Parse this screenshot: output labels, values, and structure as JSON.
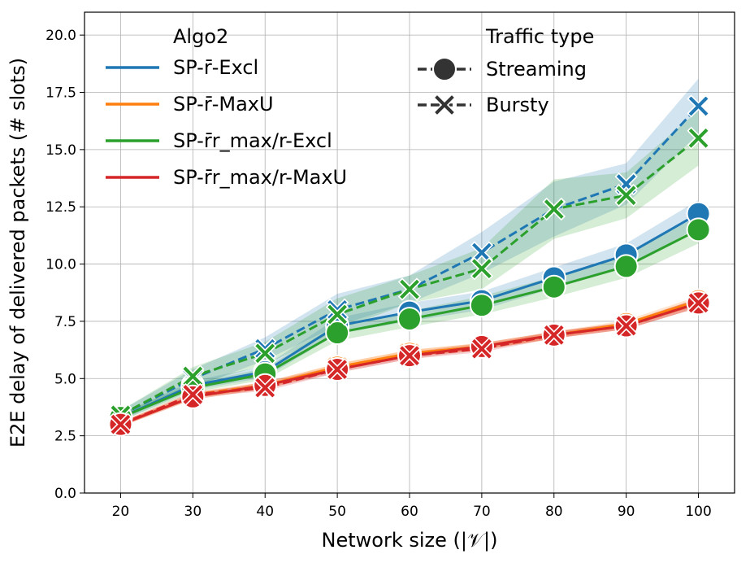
{
  "chart_data": {
    "type": "line",
    "xlabel": "Network size (|𝒱|)",
    "ylabel": "E2E delay of delivered packets (# slots)",
    "x": [
      20,
      30,
      40,
      50,
      60,
      70,
      80,
      90,
      100
    ],
    "xlim": [
      15,
      105
    ],
    "ylim": [
      0,
      21
    ],
    "yticks": [
      "0.0",
      "2.5",
      "5.0",
      "7.5",
      "10.0",
      "12.5",
      "15.0",
      "17.5",
      "20.0"
    ],
    "ytick_values": [
      0,
      2.5,
      5,
      7.5,
      10,
      12.5,
      15,
      17.5,
      20
    ],
    "grid": true,
    "legend_algo": {
      "title": "Algo2",
      "entries": [
        {
          "label": "SP-r̄-Excl",
          "color": "#1f77b4"
        },
        {
          "label": "SP-r̄-MaxU",
          "color": "#ff7f0e"
        },
        {
          "label": "SP-r̄r_max/r-Excl",
          "color": "#2ca02c"
        },
        {
          "label": "SP-r̄r_max/r-MaxU",
          "color": "#d62728"
        }
      ]
    },
    "legend_traffic": {
      "title": "Traffic type",
      "entries": [
        {
          "label": "Streaming",
          "marker": "circle",
          "style": "dashed"
        },
        {
          "label": "Bursty",
          "marker": "x",
          "style": "dashed"
        }
      ]
    },
    "series": [
      {
        "algo": "SP-r̄-Excl",
        "traffic": "Streaming",
        "color": "#1f77b4",
        "values": [
          3.3,
          4.7,
          5.3,
          7.3,
          7.9,
          8.4,
          9.4,
          10.4,
          12.2
        ],
        "ci": [
          0.15,
          0.2,
          0.25,
          0.35,
          0.4,
          0.4,
          0.45,
          0.5,
          0.6
        ]
      },
      {
        "algo": "SP-r̄-Excl",
        "traffic": "Bursty",
        "color": "#1f77b4",
        "values": [
          3.4,
          5.0,
          6.3,
          8.0,
          8.9,
          10.5,
          12.4,
          13.5,
          16.9
        ],
        "ci": [
          0.2,
          0.4,
          0.5,
          0.7,
          0.6,
          0.9,
          1.2,
          0.9,
          1.2
        ]
      },
      {
        "algo": "SP-r̄-MaxU",
        "traffic": "Streaming",
        "color": "#ff7f0e",
        "values": [
          3.0,
          4.2,
          4.7,
          5.5,
          6.1,
          6.4,
          6.9,
          7.4,
          8.4
        ],
        "ci": [
          0.1,
          0.12,
          0.15,
          0.15,
          0.15,
          0.15,
          0.15,
          0.15,
          0.2
        ]
      },
      {
        "algo": "SP-r̄-MaxU",
        "traffic": "Bursty",
        "color": "#ff7f0e",
        "values": [
          3.0,
          4.3,
          4.7,
          5.5,
          6.1,
          6.4,
          6.9,
          7.3,
          8.3
        ],
        "ci": [
          0.1,
          0.12,
          0.15,
          0.15,
          0.15,
          0.15,
          0.15,
          0.15,
          0.2
        ]
      },
      {
        "algo": "SP-r̄r_max/r-Excl",
        "traffic": "Streaming",
        "color": "#2ca02c",
        "values": [
          3.3,
          4.6,
          5.2,
          7.0,
          7.6,
          8.2,
          9.0,
          9.9,
          11.5
        ],
        "ci": [
          0.15,
          0.2,
          0.25,
          0.35,
          0.35,
          0.4,
          0.45,
          0.5,
          0.6
        ]
      },
      {
        "algo": "SP-r̄r_max/r-Excl",
        "traffic": "Bursty",
        "color": "#2ca02c",
        "values": [
          3.4,
          5.1,
          6.1,
          7.8,
          8.9,
          9.8,
          12.4,
          13.0,
          15.5
        ],
        "ci": [
          0.2,
          0.4,
          0.5,
          0.7,
          0.6,
          0.9,
          1.3,
          1.0,
          1.2
        ]
      },
      {
        "algo": "SP-r̄r_max/r-MaxU",
        "traffic": "Streaming",
        "color": "#d62728",
        "values": [
          3.0,
          4.2,
          4.7,
          5.4,
          6.0,
          6.4,
          6.9,
          7.3,
          8.3
        ],
        "ci": [
          0.1,
          0.12,
          0.15,
          0.15,
          0.15,
          0.15,
          0.15,
          0.15,
          0.2
        ]
      },
      {
        "algo": "SP-r̄r_max/r-MaxU",
        "traffic": "Bursty",
        "color": "#d62728",
        "values": [
          3.0,
          4.3,
          4.6,
          5.4,
          6.0,
          6.3,
          6.9,
          7.3,
          8.3
        ],
        "ci": [
          0.1,
          0.12,
          0.15,
          0.15,
          0.15,
          0.15,
          0.15,
          0.15,
          0.2
        ]
      }
    ]
  }
}
